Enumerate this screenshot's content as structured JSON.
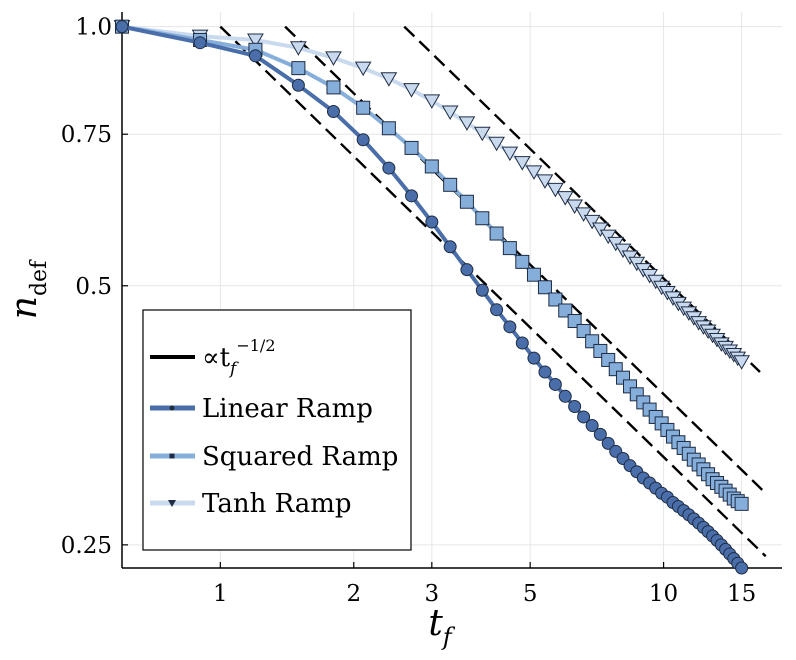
{
  "chart_data": {
    "type": "line",
    "xscale": "log",
    "yscale": "log",
    "xlim": [
      0.6,
      18.5
    ],
    "ylim": [
      0.235,
      1.04
    ],
    "grid": true,
    "legend_position": "bottom-left",
    "xticks": [
      1,
      2,
      3,
      5,
      10,
      15
    ],
    "xtick_labels": [
      "1",
      "2",
      "3",
      "5",
      "10",
      "15"
    ],
    "yticks": [
      0.25,
      0.5,
      0.75,
      1.0
    ],
    "ytick_labels": [
      "0.25",
      "0.5",
      "0.75",
      "1.0"
    ],
    "xlabel_main": "t",
    "xlabel_sub": "f",
    "ylabel_main": "n",
    "ylabel_sub": "def",
    "colors": {
      "linear": "#4a6ea9",
      "squared": "#86aedb",
      "tanh": "#c9d9ee",
      "reference": "#000000"
    },
    "x": [
      0.6,
      0.9,
      1.2,
      1.5,
      1.8,
      2.1,
      2.4,
      2.7,
      3.0,
      3.3,
      3.6,
      3.9,
      4.2,
      4.5,
      4.8,
      5.1,
      5.4,
      5.7,
      6.0,
      6.3,
      6.6,
      6.9,
      7.2,
      7.5,
      7.8,
      8.1,
      8.4,
      8.7,
      9.0,
      9.3,
      9.6,
      9.9,
      10.2,
      10.5,
      10.8,
      11.1,
      11.4,
      11.7,
      12.0,
      12.3,
      12.6,
      12.9,
      13.2,
      13.5,
      13.8,
      14.1,
      14.4,
      14.7,
      15.0
    ],
    "series": [
      {
        "name": "Linear Ramp",
        "marker": "circle",
        "values": [
          1.0,
          0.958,
          0.925,
          0.855,
          0.797,
          0.739,
          0.685,
          0.636,
          0.593,
          0.555,
          0.522,
          0.494,
          0.469,
          0.448,
          0.429,
          0.412,
          0.397,
          0.384,
          0.372,
          0.362,
          0.352,
          0.344,
          0.336,
          0.328,
          0.321,
          0.315,
          0.309,
          0.304,
          0.299,
          0.295,
          0.291,
          0.287,
          0.284,
          0.28,
          0.277,
          0.274,
          0.271,
          0.268,
          0.265,
          0.262,
          0.259,
          0.256,
          0.253,
          0.25,
          0.247,
          0.244,
          0.241,
          0.238,
          0.235
        ]
      },
      {
        "name": "Squared Ramp",
        "marker": "square",
        "values": [
          1.0,
          0.965,
          0.94,
          0.895,
          0.85,
          0.805,
          0.762,
          0.723,
          0.688,
          0.655,
          0.626,
          0.599,
          0.575,
          0.553,
          0.533,
          0.515,
          0.498,
          0.482,
          0.468,
          0.455,
          0.443,
          0.431,
          0.42,
          0.41,
          0.4,
          0.391,
          0.382,
          0.374,
          0.366,
          0.359,
          0.352,
          0.346,
          0.34,
          0.334,
          0.329,
          0.324,
          0.319,
          0.314,
          0.31,
          0.306,
          0.302,
          0.298,
          0.295,
          0.292,
          0.289,
          0.286,
          0.283,
          0.281,
          0.279
        ]
      },
      {
        "name": "Tanh Ramp",
        "marker": "triangle-down",
        "values": [
          1.0,
          0.975,
          0.965,
          0.945,
          0.92,
          0.895,
          0.87,
          0.845,
          0.82,
          0.796,
          0.773,
          0.752,
          0.732,
          0.713,
          0.695,
          0.678,
          0.662,
          0.647,
          0.633,
          0.619,
          0.606,
          0.594,
          0.582,
          0.571,
          0.56,
          0.55,
          0.54,
          0.531,
          0.522,
          0.514,
          0.506,
          0.498,
          0.491,
          0.484,
          0.477,
          0.471,
          0.465,
          0.459,
          0.453,
          0.448,
          0.443,
          0.438,
          0.433,
          0.428,
          0.424,
          0.42,
          0.416,
          0.412,
          0.408
        ]
      }
    ],
    "reference_lines": [
      {
        "x": [
          1.0,
          17.0
        ],
        "y": [
          1.0,
          0.2425
        ]
      },
      {
        "x": [
          1.4,
          17.0
        ],
        "y": [
          1.0,
          0.287
        ]
      },
      {
        "x": [
          2.6,
          16.5
        ],
        "y": [
          1.0,
          0.397
        ]
      }
    ],
    "legend": [
      {
        "key": "reference",
        "label_prefix": "∝t",
        "label_sub": "f",
        "label_sup": "−1/2"
      },
      {
        "key": "linear",
        "label": "Linear Ramp"
      },
      {
        "key": "squared",
        "label": "Squared Ramp"
      },
      {
        "key": "tanh",
        "label": "Tanh Ramp"
      }
    ]
  }
}
